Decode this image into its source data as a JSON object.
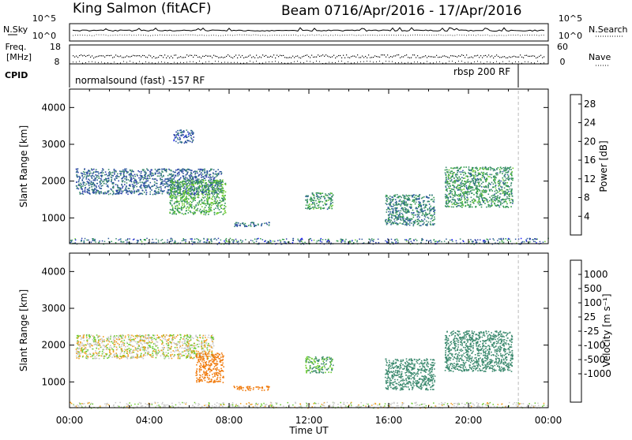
{
  "header": {
    "station": "King Salmon (fitACF)",
    "beam": "Beam 07",
    "date_range": "16/Apr/2016 - 17/Apr/2016"
  },
  "top_strip": {
    "left_label_1": "N.Sky",
    "left_label_2": "Freq.",
    "left_label_3": "[MHz]",
    "left_label_4": "CPID",
    "left_tick_1a": "10^5",
    "left_tick_1b": "10^0",
    "left_tick_2a": "18",
    "left_tick_2b": "8",
    "right_label_1": "N.Search",
    "right_label_2": "Nave",
    "right_tick_1a": "10^5",
    "right_tick_1b": "10^0",
    "right_tick_2a": "60",
    "right_tick_2b": "0",
    "cpid_1": "normalsound (fast) -157 RF",
    "cpid_2": "rbsp 200 RF"
  },
  "colors": {
    "power_scale": [
      "#1a1aff",
      "#2a3ea8",
      "#2b5b9a",
      "#3c8a6f",
      "#2d9a4a",
      "#6ccc2e",
      "#e8a40c",
      "#f07a0c",
      "#e84a10",
      "#e00000"
    ],
    "velocity_scale": [
      "#e00000",
      "#e84a10",
      "#f07a0c",
      "#f0a020",
      "#c8c8c8",
      "#c8c8c8",
      "#6ccc2e",
      "#3c8a6f",
      "#2a6aa8",
      "#1a3aaa"
    ]
  },
  "chart_data": [
    {
      "type": "heatmap",
      "panel": "power",
      "ylabel": "Slant Range [km]",
      "yticks": [
        "1000",
        "2000",
        "3000",
        "4000"
      ],
      "ylim": [
        300,
        4500
      ],
      "xlim": [
        0,
        24
      ],
      "colorbar_label": "Power [dB]",
      "colorbar_ticks": [
        "4",
        "8",
        "12",
        "16",
        "20",
        "24",
        "28"
      ],
      "colorbar_range": [
        0,
        30
      ],
      "echo_regions": [
        {
          "t": [
            0.3,
            7.6
          ],
          "r": [
            1650,
            2350
          ],
          "value": 8
        },
        {
          "t": [
            5.0,
            7.8
          ],
          "r": [
            1100,
            2050
          ],
          "value": 14
        },
        {
          "t": [
            8.2,
            10.0
          ],
          "r": [
            780,
            900
          ],
          "value": 9
        },
        {
          "t": [
            11.8,
            13.2
          ],
          "r": [
            1250,
            1700
          ],
          "value": 12
        },
        {
          "t": [
            15.8,
            18.3
          ],
          "r": [
            800,
            1650
          ],
          "value": 10
        },
        {
          "t": [
            18.8,
            22.2
          ],
          "r": [
            1300,
            2400
          ],
          "value": 12
        },
        {
          "t": [
            5.2,
            6.2
          ],
          "r": [
            3050,
            3400
          ],
          "value": 6
        }
      ]
    },
    {
      "type": "heatmap",
      "panel": "velocity",
      "ylabel": "Slant Range [km]",
      "yticks": [
        "1000",
        "2000",
        "3000",
        "4000"
      ],
      "ylim": [
        300,
        4500
      ],
      "xlim": [
        0,
        24
      ],
      "xticks": [
        "00:00",
        "04:00",
        "08:00",
        "12:00",
        "16:00",
        "20:00",
        "00:00"
      ],
      "xlabel": "Time UT",
      "colorbar_label": "Velocity [m s⁻¹]",
      "colorbar_ticks": [
        "1000",
        "500",
        "100",
        "25",
        "-25",
        "-100",
        "-500",
        "-1000"
      ],
      "echo_regions": [
        {
          "t": [
            0.3,
            7.2
          ],
          "r": [
            1650,
            2300
          ],
          "value": 0
        },
        {
          "t": [
            6.3,
            7.7
          ],
          "r": [
            1000,
            1800
          ],
          "value": -300
        },
        {
          "t": [
            8.2,
            10.0
          ],
          "r": [
            780,
            900
          ],
          "value": -200
        },
        {
          "t": [
            11.8,
            13.2
          ],
          "r": [
            1250,
            1700
          ],
          "value": 100
        },
        {
          "t": [
            15.8,
            18.3
          ],
          "r": [
            800,
            1650
          ],
          "value": 200
        },
        {
          "t": [
            18.8,
            22.2
          ],
          "r": [
            1300,
            2400
          ],
          "value": 300
        }
      ]
    }
  ]
}
